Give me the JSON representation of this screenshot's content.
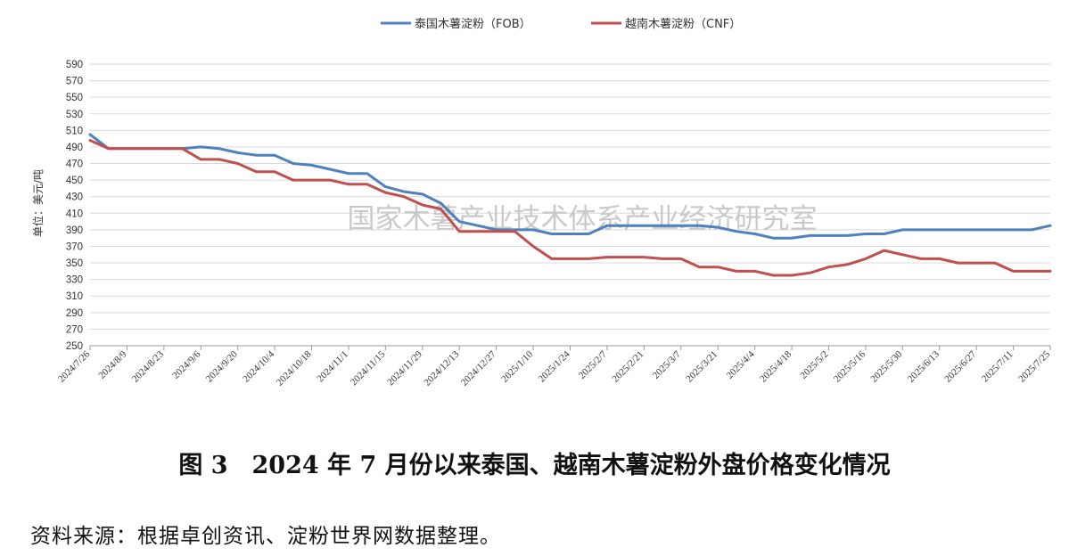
{
  "chart_data": {
    "type": "line",
    "ylabel": "单位：美元/吨",
    "ylim": [
      250,
      590
    ],
    "yticks": [
      250,
      270,
      290,
      310,
      330,
      350,
      370,
      390,
      410,
      430,
      450,
      470,
      490,
      510,
      530,
      550,
      570,
      590
    ],
    "grid": "horizontal",
    "legend_position": "top-center",
    "watermark": "国家木薯产业技术体系产业经济研究室",
    "x_tick_labels": [
      "2024/7/26",
      "2024/8/9",
      "2024/8/23",
      "2024/9/6",
      "2024/9/20",
      "2024/10/4",
      "2024/10/18",
      "2024/11/1",
      "2024/11/15",
      "2024/11/29",
      "2024/12/13",
      "2024/12/27",
      "2025/1/10",
      "2025/1/24",
      "2025/2/7",
      "2025/2/21",
      "2025/3/7",
      "2025/3/21",
      "2025/4/4",
      "2025/4/18",
      "2025/5/2",
      "2025/5/16",
      "2025/5/30",
      "2025/6/13",
      "2025/6/27",
      "2025/7/11",
      "2025/7/25"
    ],
    "x": [
      "2024/7/26",
      "2024/8/2",
      "2024/8/9",
      "2024/8/16",
      "2024/8/23",
      "2024/8/30",
      "2024/9/6",
      "2024/9/13",
      "2024/9/20",
      "2024/9/27",
      "2024/10/4",
      "2024/10/11",
      "2024/10/18",
      "2024/10/25",
      "2024/11/1",
      "2024/11/8",
      "2024/11/15",
      "2024/11/22",
      "2024/11/29",
      "2024/12/6",
      "2024/12/13",
      "2024/12/20",
      "2024/12/27",
      "2025/1/3",
      "2025/1/10",
      "2025/1/17",
      "2025/1/24",
      "2025/1/31",
      "2025/2/7",
      "2025/2/14",
      "2025/2/21",
      "2025/2/28",
      "2025/3/7",
      "2025/3/14",
      "2025/3/21",
      "2025/3/28",
      "2025/4/4",
      "2025/4/11",
      "2025/4/18",
      "2025/4/25",
      "2025/5/2",
      "2025/5/9",
      "2025/5/16",
      "2025/5/23",
      "2025/5/30",
      "2025/6/6",
      "2025/6/13",
      "2025/6/20",
      "2025/6/27",
      "2025/7/4",
      "2025/7/11",
      "2025/7/18",
      "2025/7/25"
    ],
    "series": [
      {
        "name": "泰国木薯淀粉（FOB）",
        "color": "#4f81bd",
        "values": [
          505,
          488,
          488,
          488,
          488,
          488,
          490,
          488,
          483,
          480,
          480,
          470,
          468,
          463,
          458,
          458,
          442,
          436,
          433,
          422,
          400,
          395,
          390,
          390,
          390,
          385,
          385,
          385,
          395,
          395,
          395,
          395,
          395,
          395,
          393,
          388,
          385,
          380,
          380,
          383,
          383,
          383,
          385,
          385,
          390,
          390,
          390,
          390,
          390,
          390,
          390,
          390,
          395
        ]
      },
      {
        "name": "越南木薯淀粉（CNF）",
        "color": "#c0504d",
        "values": [
          498,
          488,
          488,
          488,
          488,
          488,
          475,
          475,
          470,
          460,
          460,
          450,
          450,
          450,
          445,
          445,
          435,
          430,
          420,
          415,
          388,
          388,
          388,
          388,
          370,
          355,
          355,
          355,
          357,
          357,
          357,
          355,
          355,
          345,
          345,
          340,
          340,
          335,
          335,
          338,
          345,
          348,
          355,
          365,
          360,
          355,
          355,
          350,
          350,
          350,
          340,
          340,
          340
        ]
      }
    ]
  },
  "figure": {
    "title": "图 3　2024 年 7 月份以来泰国、越南木薯淀粉外盘价格变化情况",
    "source": "资料来源：根据卓创资讯、淀粉世界网数据整理。"
  }
}
